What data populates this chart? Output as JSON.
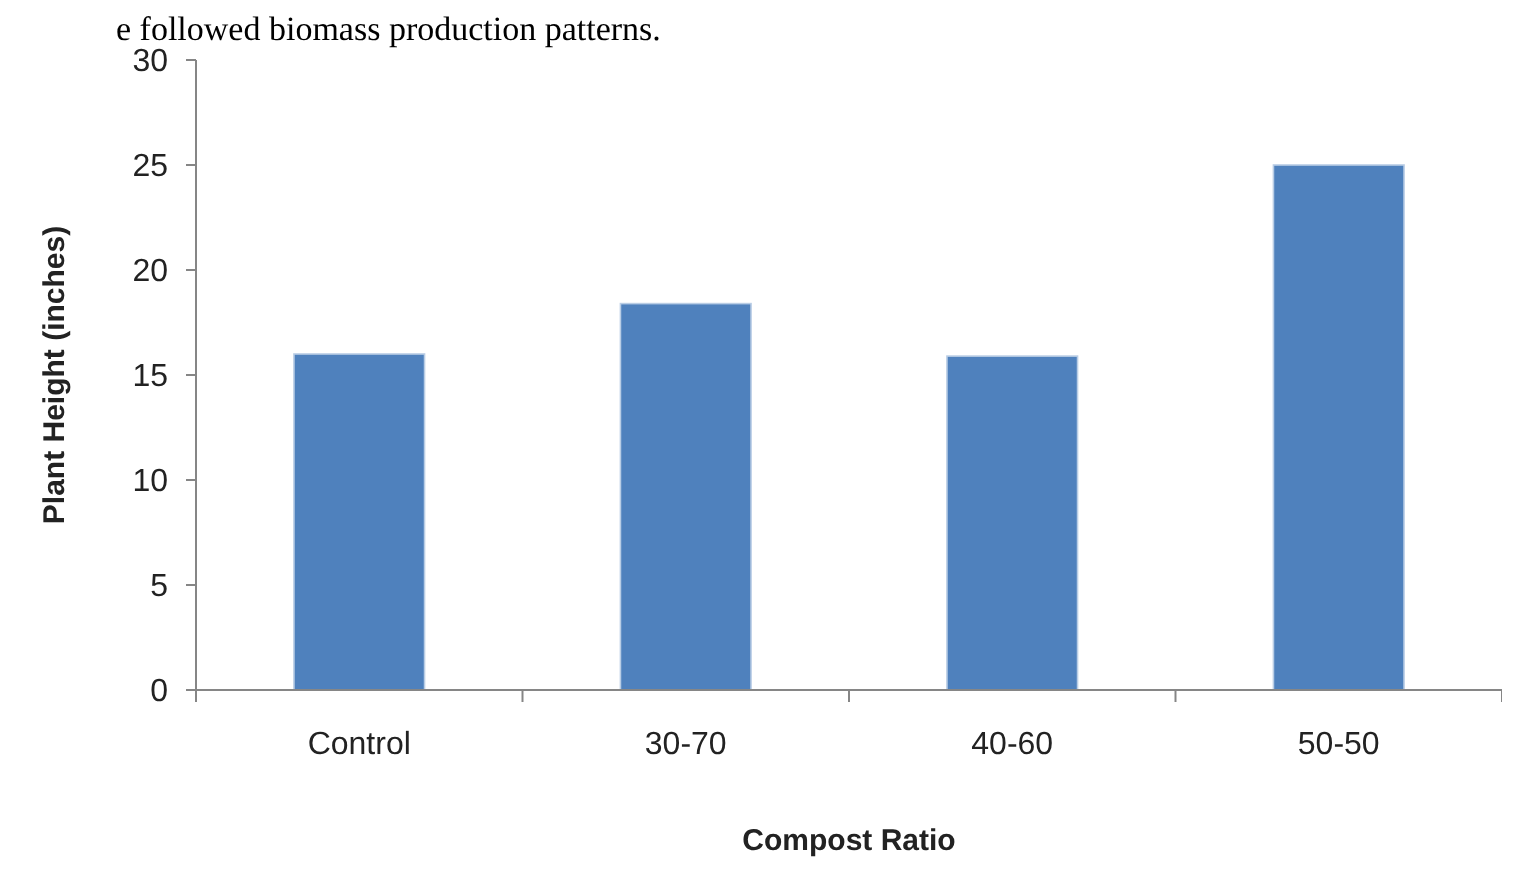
{
  "chart_data": {
    "type": "bar",
    "xlabel": "Compost Ratio",
    "ylabel": "Plant Height (inches)",
    "categories": [
      "Control",
      "30-70",
      "40-60",
      "50-50"
    ],
    "values": [
      16.0,
      18.4,
      15.9,
      25.0
    ],
    "color": "#4f81bd",
    "ylim": [
      0,
      30
    ],
    "yticks": [
      0,
      5,
      10,
      15,
      20,
      25,
      30
    ],
    "grid": false,
    "annotations": [
      "e followed biomass production patterns."
    ]
  }
}
